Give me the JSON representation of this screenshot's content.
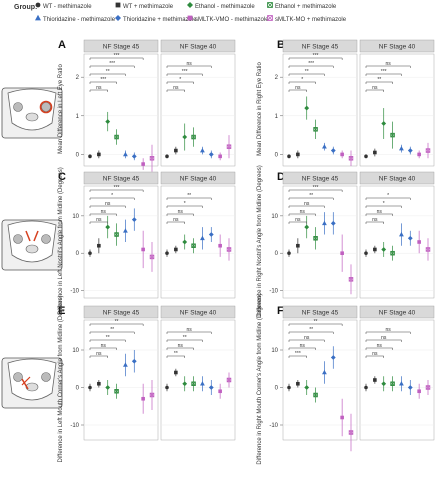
{
  "legend": {
    "title": "Group:",
    "items": [
      {
        "label": "WT - methimazole",
        "color": "#333333",
        "marker": "circle"
      },
      {
        "label": "WT + methimazole",
        "color": "#333333",
        "marker": "square"
      },
      {
        "label": "Ethanol - methimazole",
        "color": "#2e8b3e",
        "marker": "diamond"
      },
      {
        "label": "Ethanol + methimazole",
        "color": "#2e8b3e",
        "marker": "square-x"
      },
      {
        "label": "Thioridazine - methimazole",
        "color": "#3a6fc4",
        "marker": "triangle"
      },
      {
        "label": "Thioridazine + methimazole",
        "color": "#3a6fc4",
        "marker": "diamond"
      },
      {
        "label": "sMLTK-VMO - methimazole",
        "color": "#c060c0",
        "marker": "square"
      },
      {
        "label": "sMLTK-MO + methimazole",
        "color": "#c060c0",
        "marker": "square-x"
      }
    ]
  },
  "stage_titles": [
    "NF Stage 45",
    "NF Stage 40"
  ],
  "chart_data": [
    {
      "panel": "A",
      "type": "scatter",
      "ylabel": "Mean Difference in Left Eye Ratio",
      "ylim": [
        -0.3,
        2.6
      ],
      "facets": [
        {
          "values": [
            -0.05,
            0.0,
            0.85,
            0.45,
            0.0,
            -0.05,
            -0.25,
            -0.1
          ],
          "errors": [
            0.05,
            0.1,
            0.25,
            0.2,
            0.1,
            0.1,
            0.15,
            0.35
          ]
        },
        {
          "values": [
            -0.05,
            0.1,
            0.45,
            0.45,
            0.1,
            0.0,
            -0.05,
            0.2
          ],
          "errors": [
            0.05,
            0.1,
            0.35,
            0.25,
            0.1,
            0.1,
            0.1,
            0.3
          ]
        }
      ],
      "sig": [
        [
          {
            "label": "***",
            "level": 5
          },
          {
            "label": "***",
            "level": 4
          },
          {
            "label": "**",
            "level": 3
          },
          {
            "label": "***",
            "level": 2
          },
          {
            "label": "ns",
            "level": 1
          }
        ],
        [
          {
            "label": "ns",
            "level": 4
          },
          {
            "label": "***",
            "level": 3
          },
          {
            "label": "*",
            "level": 2
          },
          {
            "label": "ns",
            "level": 1
          }
        ]
      ]
    },
    {
      "panel": "B",
      "type": "scatter",
      "ylabel": "Mean Difference in Right Eye Ratio",
      "ylim": [
        -0.3,
        2.6
      ],
      "facets": [
        {
          "values": [
            -0.05,
            0.0,
            1.2,
            0.65,
            0.2,
            0.1,
            0.0,
            -0.1
          ],
          "errors": [
            0.05,
            0.1,
            0.3,
            0.25,
            0.1,
            0.1,
            0.1,
            0.2
          ]
        },
        {
          "values": [
            -0.05,
            0.05,
            0.8,
            0.5,
            0.15,
            0.1,
            0.0,
            0.1
          ],
          "errors": [
            0.05,
            0.1,
            0.4,
            0.35,
            0.1,
            0.1,
            0.1,
            0.2
          ]
        }
      ],
      "sig": [
        [
          {
            "label": "***",
            "level": 5
          },
          {
            "label": "***",
            "level": 4
          },
          {
            "label": "**",
            "level": 3
          },
          {
            "label": "*",
            "level": 2
          },
          {
            "label": "ns",
            "level": 1
          }
        ],
        [
          {
            "label": "ns",
            "level": 4
          },
          {
            "label": "***",
            "level": 3
          },
          {
            "label": "**",
            "level": 2
          },
          {
            "label": "ns",
            "level": 1
          }
        ]
      ]
    },
    {
      "panel": "C",
      "type": "scatter",
      "ylabel": "Difference in Left Nostril's Angle from Midline (Degrees)",
      "ylim": [
        -12,
        18
      ],
      "facets": [
        {
          "values": [
            0,
            2,
            7,
            5,
            6,
            9,
            1,
            -1
          ],
          "errors": [
            1,
            2,
            3,
            3,
            3,
            3,
            5,
            4
          ]
        },
        {
          "values": [
            0,
            1,
            3,
            2,
            4,
            5,
            2,
            1
          ],
          "errors": [
            1,
            1,
            2,
            2,
            3,
            2,
            3,
            3
          ]
        }
      ],
      "sig": [
        [
          {
            "label": "***",
            "level": 5
          },
          {
            "label": "*",
            "level": 4
          },
          {
            "label": "ns",
            "level": 3
          },
          {
            "label": "ns",
            "level": 2
          },
          {
            "label": "ns",
            "level": 1
          }
        ],
        [
          {
            "label": "**",
            "level": 4
          },
          {
            "label": "*",
            "level": 3
          },
          {
            "label": "ns",
            "level": 2
          },
          {
            "label": "ns",
            "level": 1
          }
        ]
      ]
    },
    {
      "panel": "D",
      "type": "scatter",
      "ylabel": "Difference in Right Nostril's Angle from Midline (Degrees)",
      "ylim": [
        -12,
        18
      ],
      "facets": [
        {
          "values": [
            0,
            2,
            7,
            4,
            8,
            8,
            0,
            -7
          ],
          "errors": [
            1,
            2,
            3,
            3,
            3,
            3,
            5,
            4
          ]
        },
        {
          "values": [
            0,
            1,
            1,
            0,
            5,
            4,
            3,
            1
          ],
          "errors": [
            1,
            1,
            2,
            2,
            3,
            2,
            3,
            3
          ]
        }
      ],
      "sig": [
        [
          {
            "label": "***",
            "level": 5
          },
          {
            "label": "**",
            "level": 4
          },
          {
            "label": "ns",
            "level": 3
          },
          {
            "label": "ns",
            "level": 2
          },
          {
            "label": "ns",
            "level": 1
          }
        ],
        [
          {
            "label": "*",
            "level": 4
          },
          {
            "label": "*",
            "level": 3
          },
          {
            "label": "ns",
            "level": 2
          },
          {
            "label": "ns",
            "level": 1
          }
        ]
      ]
    },
    {
      "panel": "E",
      "type": "scatter",
      "ylabel": "Difference in Left Mouth Corner's Angle from Midline (Degrees)",
      "ylim": [
        -14,
        18
      ],
      "facets": [
        {
          "values": [
            0,
            1,
            0,
            -1,
            6,
            7,
            -3,
            -2
          ],
          "errors": [
            1,
            1,
            2,
            2,
            3,
            3,
            4,
            4
          ]
        },
        {
          "values": [
            0,
            4,
            1,
            1,
            1,
            0,
            -1,
            2
          ],
          "errors": [
            1,
            1,
            2,
            2,
            2,
            2,
            2,
            2
          ]
        }
      ],
      "sig": [
        [
          {
            "label": "**",
            "level": 5
          },
          {
            "label": "**",
            "level": 4
          },
          {
            "label": "**",
            "level": 3
          },
          {
            "label": "ns",
            "level": 2
          },
          {
            "label": "ns",
            "level": 1
          }
        ],
        [
          {
            "label": "ns",
            "level": 4
          },
          {
            "label": "**",
            "level": 3
          },
          {
            "label": "ns",
            "level": 2
          },
          {
            "label": "**",
            "level": 1
          }
        ]
      ]
    },
    {
      "panel": "F",
      "type": "scatter",
      "ylabel": "Difference in Right Mouth Corner's Angle from Midline (Degrees)",
      "ylim": [
        -14,
        18
      ],
      "facets": [
        {
          "values": [
            0,
            1,
            0,
            -2,
            4,
            8,
            -8,
            -12
          ],
          "errors": [
            1,
            1,
            2,
            2,
            3,
            3,
            5,
            5
          ]
        },
        {
          "values": [
            0,
            2,
            1,
            1,
            1,
            0,
            -1,
            0
          ],
          "errors": [
            1,
            1,
            2,
            2,
            2,
            2,
            2,
            2
          ]
        }
      ],
      "sig": [
        [
          {
            "label": "**",
            "level": 5
          },
          {
            "label": "**",
            "level": 4
          },
          {
            "label": "ns",
            "level": 3
          },
          {
            "label": "ns",
            "level": 2
          },
          {
            "label": "***",
            "level": 1
          }
        ],
        [
          {
            "label": "ns",
            "level": 4
          },
          {
            "label": "ns",
            "level": 3
          },
          {
            "label": "ns",
            "level": 2
          },
          {
            "label": "ns",
            "level": 1
          }
        ]
      ]
    }
  ]
}
